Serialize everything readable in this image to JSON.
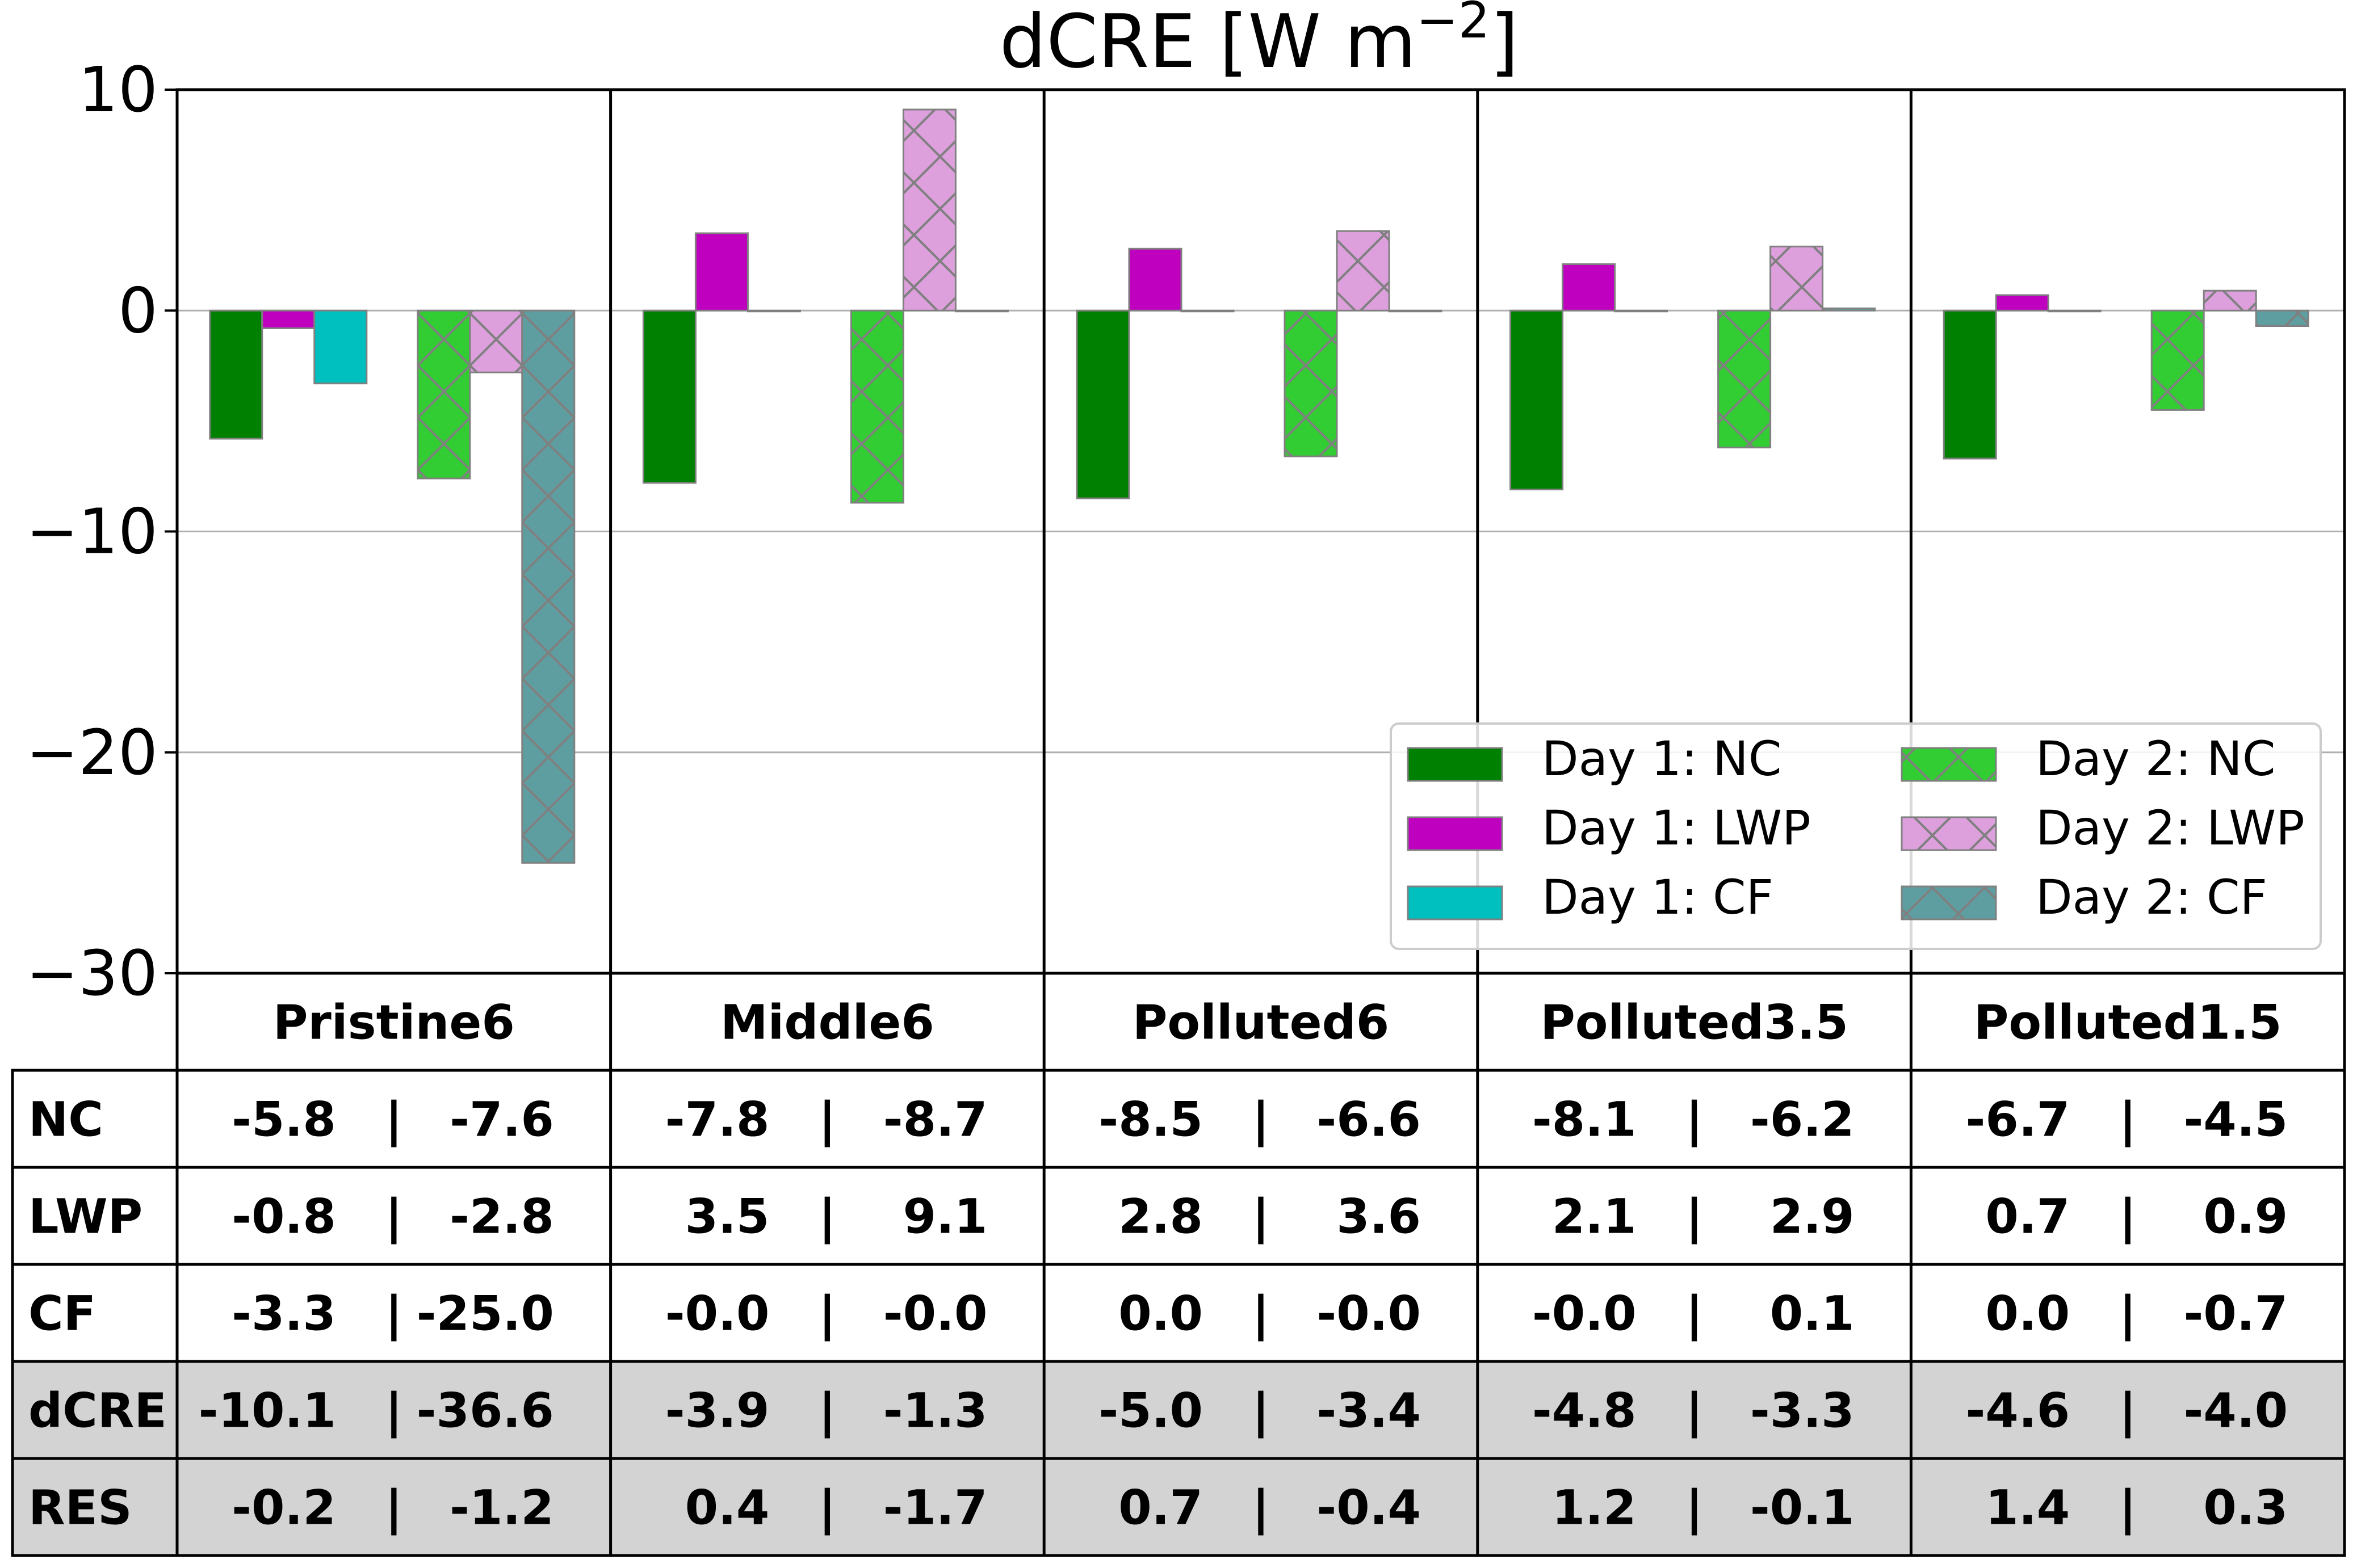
{
  "chart_data": {
    "type": "bar",
    "title_main": "dCRE [W m",
    "title_sup": "−2",
    "title_close": "]",
    "ylim": [
      -30,
      10
    ],
    "yticks": [
      {
        "value": 10,
        "label": "10"
      },
      {
        "value": 0,
        "label": "0"
      },
      {
        "value": -10,
        "label": "−10"
      },
      {
        "value": -20,
        "label": "−20"
      },
      {
        "value": -30,
        "label": "−30"
      }
    ],
    "grid": "horizontal",
    "legend_position": "lower-right",
    "categories": [
      "Pristine6",
      "Middle6",
      "Polluted6",
      "Polluted3.5",
      "Polluted1.5"
    ],
    "series": [
      {
        "name": "Day 1: NC",
        "color": "#008000",
        "hatch": false,
        "values": [
          -5.8,
          -7.8,
          -8.5,
          -8.1,
          -6.7
        ]
      },
      {
        "name": "Day 1: LWP",
        "color": "#bf00bf",
        "hatch": false,
        "values": [
          -0.8,
          3.5,
          2.8,
          2.1,
          0.7
        ]
      },
      {
        "name": "Day 1: CF",
        "color": "#00bfbf",
        "hatch": false,
        "values": [
          -3.3,
          -0.0,
          0.0,
          -0.0,
          0.0
        ]
      },
      {
        "name": "Day 2: NC",
        "color": "#32cd32",
        "hatch": true,
        "values": [
          -7.6,
          -8.7,
          -6.6,
          -6.2,
          -4.5
        ]
      },
      {
        "name": "Day 2: LWP",
        "color": "#dda0dd",
        "hatch": true,
        "values": [
          -2.8,
          9.1,
          3.6,
          2.9,
          0.9
        ]
      },
      {
        "name": "Day 2: CF",
        "color": "#5f9ea0",
        "hatch": true,
        "values": [
          -25.0,
          -0.0,
          -0.0,
          0.1,
          -0.7
        ]
      }
    ],
    "table": {
      "rows": [
        {
          "label": "NC",
          "shaded": false,
          "cells": [
            [
              "-5.8",
              "-7.6"
            ],
            [
              "-7.8",
              "-8.7"
            ],
            [
              "-8.5",
              "-6.6"
            ],
            [
              "-8.1",
              "-6.2"
            ],
            [
              "-6.7",
              "-4.5"
            ]
          ]
        },
        {
          "label": "LWP",
          "shaded": false,
          "cells": [
            [
              "-0.8",
              "-2.8"
            ],
            [
              "3.5",
              "9.1"
            ],
            [
              "2.8",
              "3.6"
            ],
            [
              "2.1",
              "2.9"
            ],
            [
              "0.7",
              "0.9"
            ]
          ]
        },
        {
          "label": "CF",
          "shaded": false,
          "cells": [
            [
              "-3.3",
              "-25.0"
            ],
            [
              "-0.0",
              "-0.0"
            ],
            [
              "0.0",
              "-0.0"
            ],
            [
              "-0.0",
              "0.1"
            ],
            [
              "0.0",
              "-0.7"
            ]
          ]
        },
        {
          "label": "dCRE",
          "shaded": true,
          "cells": [
            [
              "-10.1",
              "-36.6"
            ],
            [
              "-3.9",
              "-1.3"
            ],
            [
              "-5.0",
              "-3.4"
            ],
            [
              "-4.8",
              "-3.3"
            ],
            [
              "-4.6",
              "-4.0"
            ]
          ]
        },
        {
          "label": "RES",
          "shaded": true,
          "cells": [
            [
              "-0.2",
              "-1.2"
            ],
            [
              "0.4",
              "-1.7"
            ],
            [
              "0.7",
              "-0.4"
            ],
            [
              "1.2",
              "-0.1"
            ],
            [
              "1.4",
              "0.3"
            ]
          ]
        }
      ],
      "separator": "|",
      "shade_color": "#d3d3d3"
    }
  }
}
